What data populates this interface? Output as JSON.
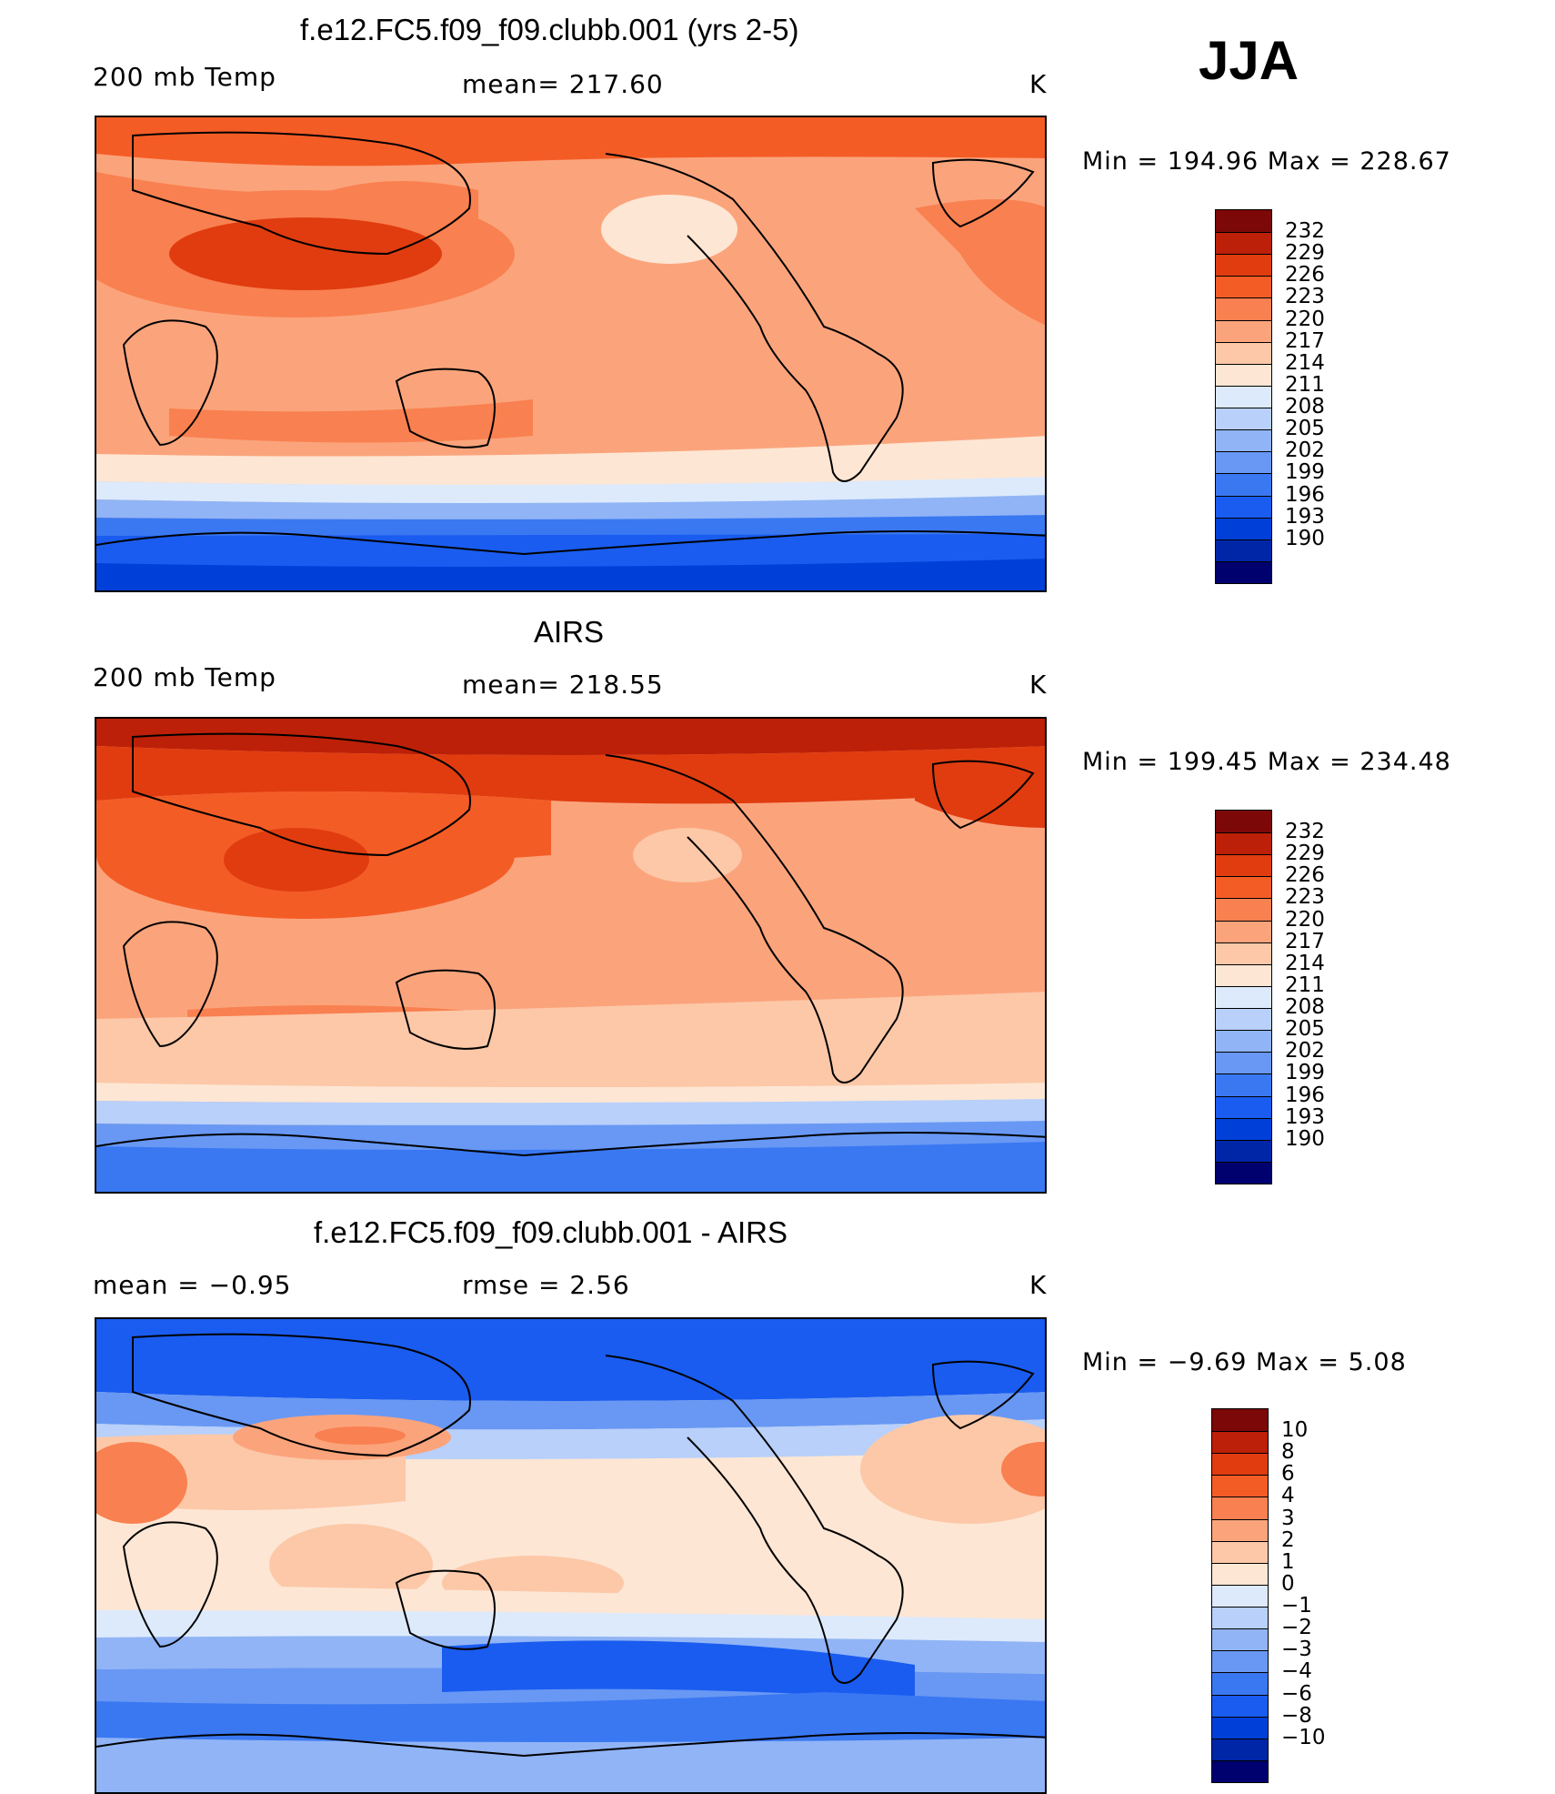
{
  "season": "JJA",
  "panels": [
    {
      "title": "f.e12.FC5.f09_f09.clubb.001 (yrs 2-5)",
      "left_label": "200 mb Temp",
      "center_label": "mean=  217.60",
      "units": "K",
      "min_max": "Min  =  194.96  Max  =  228.67",
      "kind": "model"
    },
    {
      "title": "AIRS",
      "left_label": "200 mb Temp",
      "center_label": "mean=  218.55",
      "units": "K",
      "min_max": "Min  =  199.45  Max  =  234.48",
      "kind": "obs"
    },
    {
      "title": "f.e12.FC5.f09_f09.clubb.001 - AIRS",
      "left_label": "mean  =     −0.95",
      "center_label": "rmse  =     2.56",
      "units": "K",
      "min_max": "Min  =    −9.69  Max  =      5.08",
      "kind": "diff"
    }
  ],
  "legends": {
    "temperature": {
      "colors": [
        "#00006e",
        "#0026a8",
        "#0040d8",
        "#1a5cf0",
        "#3a78f2",
        "#6898f4",
        "#90b4f6",
        "#b8d0fa",
        "#dceafc",
        "#fde6d4",
        "#fcc8a8",
        "#fba47c",
        "#f98050",
        "#f45c26",
        "#e03c10",
        "#bc2008",
        "#7c0808"
      ],
      "labels": [
        "232",
        "229",
        "226",
        "223",
        "220",
        "217",
        "214",
        "211",
        "208",
        "205",
        "202",
        "199",
        "196",
        "193",
        "190"
      ]
    },
    "difference": {
      "colors": [
        "#00006e",
        "#0026a8",
        "#0040d8",
        "#1a5cf0",
        "#3a78f2",
        "#6898f4",
        "#90b4f6",
        "#b8d0fa",
        "#dceafc",
        "#fde6d4",
        "#fcc8a8",
        "#fba47c",
        "#f98050",
        "#f45c26",
        "#e03c10",
        "#bc2008",
        "#7c0808"
      ],
      "labels": [
        "10",
        "8",
        "6",
        "4",
        "3",
        "2",
        "1",
        "0",
        "−1",
        "−2",
        "−3",
        "−4",
        "−6",
        "−8",
        "−10"
      ]
    }
  }
}
